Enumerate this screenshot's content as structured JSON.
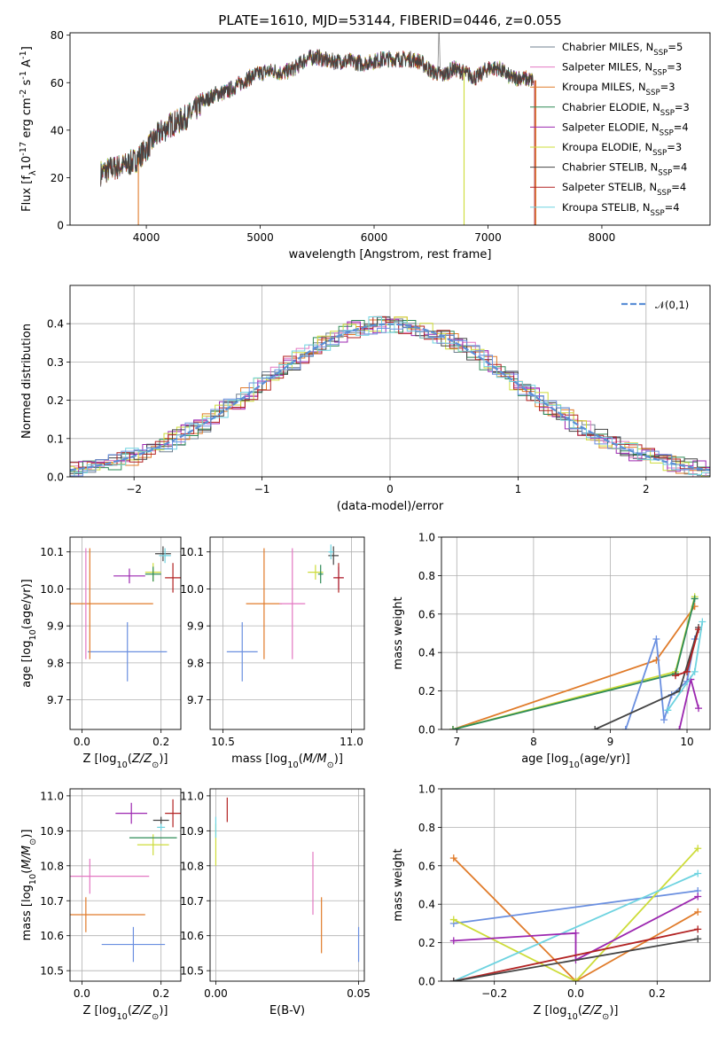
{
  "colors": {
    "Chabrier MILES": "#708090",
    "Salpeter MILES": "#e377c2",
    "Kroupa MILES": "#e07b2a",
    "Chabrier ELODIE": "#2e8b57",
    "Salpeter ELODIE": "#9c27b0",
    "Kroupa ELODIE": "#cddc39",
    "Chabrier STELIB": "#444444",
    "Salpeter STELIB": "#b22222",
    "Kroupa STELIB": "#6ed3e0",
    "blue": "#6a8fe0",
    "grid": "#b0b0b0"
  },
  "chart_data": [
    {
      "id": "spectrum",
      "type": "line",
      "title": "PLATE=1610, MJD=53144, FIBERID=0446, z=0.055",
      "xlabel": "wavelength [Angstrom, rest frame]",
      "ylabel": "Flux [f$_\\lambda$10$^{-17}$ erg cm$^{-2}$ s$^{-1}$ A$^{-1}$]",
      "xlim": [
        3330,
        8950
      ],
      "ylim": [
        0,
        81
      ],
      "xticks": [
        4000,
        5000,
        6000,
        7000,
        8000
      ],
      "yticks": [
        0,
        20,
        40,
        60,
        80
      ],
      "grid": false,
      "legend_position": "upper right",
      "legend": [
        {
          "name": "Chabrier MILES",
          "nssp": "5"
        },
        {
          "name": "Salpeter MILES",
          "nssp": "3"
        },
        {
          "name": "Kroupa MILES",
          "nssp": "3"
        },
        {
          "name": "Chabrier ELODIE",
          "nssp": "3"
        },
        {
          "name": "Salpeter ELODIE",
          "nssp": "4"
        },
        {
          "name": "Kroupa ELODIE",
          "nssp": "3"
        },
        {
          "name": "Chabrier STELIB",
          "nssp": "4"
        },
        {
          "name": "Salpeter STELIB",
          "nssp": "4"
        },
        {
          "name": "Kroupa STELIB",
          "nssp": "4"
        }
      ],
      "continuum": [
        [
          3600,
          22
        ],
        [
          3700,
          24
        ],
        [
          3800,
          25
        ],
        [
          3900,
          27
        ],
        [
          4000,
          32
        ],
        [
          4100,
          38
        ],
        [
          4200,
          42
        ],
        [
          4300,
          44
        ],
        [
          4400,
          47
        ],
        [
          4500,
          52
        ],
        [
          4600,
          55
        ],
        [
          4700,
          56
        ],
        [
          4800,
          59
        ],
        [
          4900,
          62
        ],
        [
          5000,
          64
        ],
        [
          5100,
          65
        ],
        [
          5200,
          64
        ],
        [
          5300,
          66
        ],
        [
          5400,
          70
        ],
        [
          5500,
          71
        ],
        [
          5600,
          69
        ],
        [
          5700,
          69
        ],
        [
          5800,
          69
        ],
        [
          5900,
          68
        ],
        [
          6000,
          69
        ],
        [
          6100,
          70
        ],
        [
          6200,
          70
        ],
        [
          6300,
          70
        ],
        [
          6400,
          69
        ],
        [
          6500,
          65
        ],
        [
          6600,
          63
        ],
        [
          6700,
          66
        ],
        [
          6800,
          64
        ],
        [
          6900,
          62
        ],
        [
          7000,
          66
        ],
        [
          7100,
          66
        ],
        [
          7200,
          62
        ],
        [
          7300,
          62
        ],
        [
          7400,
          61
        ]
      ],
      "spikes": [
        {
          "x": 3930,
          "series": "Kroupa MILES"
        },
        {
          "x": 6790,
          "series": "Kroupa ELODIE"
        },
        {
          "x": 7410,
          "series": "Salpeter STELIB"
        },
        {
          "x": 7420,
          "series": "Kroupa MILES"
        }
      ]
    },
    {
      "id": "residuals",
      "type": "line",
      "xlabel": "(data-model)/error",
      "ylabel": "Normed distribution",
      "xlim": [
        -2.5,
        2.5
      ],
      "ylim": [
        0,
        0.5
      ],
      "xticks": [
        -2,
        -1,
        0,
        1,
        2
      ],
      "yticks": [
        0.0,
        0.1,
        0.2,
        0.3,
        0.4
      ],
      "grid": true,
      "legend_position": "upper right",
      "legend": [
        {
          "name": "$\\mathcal{N}(0,1)$"
        }
      ],
      "histograms": "step histograms of 9 fits following the standard normal curve"
    },
    {
      "id": "age_vs_Z",
      "type": "scatter",
      "xlabel": "Z [log$_{10}$($Z/Z_\\odot$)]",
      "ylabel": "age  [log$_{10}$($age/yr$)]",
      "xlim": [
        -0.03,
        0.25
      ],
      "ylim": [
        9.62,
        10.14
      ],
      "xticks": [
        0.0,
        0.2
      ],
      "yticks": [
        9.7,
        9.8,
        9.9,
        10.0,
        10.1
      ],
      "grid": true,
      "points": [
        {
          "series": "blue",
          "x": 0.115,
          "y": 9.83,
          "xerr": 0.1,
          "yerr": 0.08
        },
        {
          "series": "Kroupa MILES",
          "x": 0.02,
          "y": 9.96,
          "xerr": 0.16,
          "yerr": 0.15
        },
        {
          "series": "Salpeter MILES",
          "x": 0.01,
          "y": 9.96,
          "xerr": 0.0,
          "yerr": 0.15
        },
        {
          "series": "Salpeter ELODIE",
          "x": 0.12,
          "y": 10.035,
          "xerr": 0.04,
          "yerr": 0.02
        },
        {
          "series": "Kroupa ELODIE",
          "x": 0.18,
          "y": 10.045,
          "xerr": 0.02,
          "yerr": 0.025
        },
        {
          "series": "Chabrier ELODIE",
          "x": 0.18,
          "y": 10.04,
          "xerr": 0.02,
          "yerr": 0.02
        },
        {
          "series": "Chabrier STELIB",
          "x": 0.205,
          "y": 10.095,
          "xerr": 0.02,
          "yerr": 0.02
        },
        {
          "series": "Kroupa STELIB",
          "x": 0.21,
          "y": 10.09,
          "xerr": 0.015,
          "yerr": 0.02
        },
        {
          "series": "Salpeter STELIB",
          "x": 0.23,
          "y": 10.03,
          "xerr": 0.02,
          "yerr": 0.04
        }
      ]
    },
    {
      "id": "age_vs_mass",
      "type": "scatter",
      "xlabel": "mass [log$_{10}$($M/M_\\odot$)]",
      "xlim": [
        10.45,
        11.05
      ],
      "ylim": [
        9.62,
        10.14
      ],
      "xticks": [
        10.5,
        11.0
      ],
      "yticks": [
        9.7,
        9.8,
        9.9,
        10.0,
        10.1
      ],
      "grid": true,
      "points": [
        {
          "series": "blue",
          "x": 10.575,
          "y": 9.83,
          "xerr": 0.06,
          "yerr": 0.08
        },
        {
          "series": "Kroupa MILES",
          "x": 10.66,
          "y": 9.96,
          "xerr": 0.07,
          "yerr": 0.15
        },
        {
          "series": "Salpeter MILES",
          "x": 10.77,
          "y": 9.96,
          "xerr": 0.05,
          "yerr": 0.15
        },
        {
          "series": "Kroupa ELODIE",
          "x": 10.86,
          "y": 10.045,
          "xerr": 0.03,
          "yerr": 0.02
        },
        {
          "series": "Chabrier ELODIE",
          "x": 10.88,
          "y": 10.04,
          "xerr": 0.01,
          "yerr": 0.025
        },
        {
          "series": "Salpeter ELODIE",
          "x": 10.95,
          "y": 10.03,
          "xerr": 0.02,
          "yerr": 0.03
        },
        {
          "series": "Chabrier STELIB",
          "x": 10.93,
          "y": 10.09,
          "xerr": 0.02,
          "yerr": 0.025
        },
        {
          "series": "Kroupa STELIB",
          "x": 10.92,
          "y": 10.1,
          "xerr": 0.01,
          "yerr": 0.02
        },
        {
          "series": "Salpeter STELIB",
          "x": 10.95,
          "y": 10.03,
          "xerr": 0.02,
          "yerr": 0.04
        }
      ]
    },
    {
      "id": "weight_vs_age",
      "type": "line",
      "xlabel": "age  [log$_{10}$($age/yr$)]",
      "ylabel": "mass weight",
      "xlim": [
        6.8,
        10.3
      ],
      "ylim": [
        0,
        1.0
      ],
      "xticks": [
        7,
        8,
        9,
        10
      ],
      "yticks": [
        0.0,
        0.2,
        0.4,
        0.6,
        0.8,
        1.0
      ],
      "grid": true,
      "series": [
        {
          "name": "Kroupa MILES",
          "points": [
            [
              6.95,
              0.0
            ],
            [
              9.6,
              0.36
            ],
            [
              10.1,
              0.64
            ]
          ]
        },
        {
          "name": "Kroupa ELODIE",
          "points": [
            [
              6.95,
              0.0
            ],
            [
              9.85,
              0.3
            ],
            [
              10.1,
              0.69
            ]
          ]
        },
        {
          "name": "Chabrier ELODIE",
          "points": [
            [
              6.95,
              0.0
            ],
            [
              9.85,
              0.29
            ],
            [
              10.1,
              0.68
            ]
          ]
        },
        {
          "name": "blue",
          "points": [
            [
              9.2,
              0.0
            ],
            [
              9.6,
              0.47
            ],
            [
              9.7,
              0.05
            ],
            [
              9.8,
              0.18
            ],
            [
              10.0,
              0.25
            ],
            [
              10.1,
              0.47
            ]
          ]
        },
        {
          "name": "Chabrier STELIB",
          "points": [
            [
              8.8,
              0.0
            ],
            [
              9.9,
              0.2
            ],
            [
              10.15,
              0.53
            ]
          ]
        },
        {
          "name": "Salpeter STELIB",
          "points": [
            [
              9.85,
              0.28
            ],
            [
              10.0,
              0.3
            ],
            [
              10.15,
              0.52
            ]
          ]
        },
        {
          "name": "Salpeter ELODIE",
          "points": [
            [
              9.9,
              0.0
            ],
            [
              10.05,
              0.26
            ],
            [
              10.15,
              0.11
            ]
          ]
        },
        {
          "name": "Kroupa STELIB",
          "points": [
            [
              9.75,
              0.1
            ],
            [
              10.1,
              0.3
            ],
            [
              10.2,
              0.56
            ]
          ]
        }
      ]
    },
    {
      "id": "mass_vs_Z",
      "type": "scatter",
      "xlabel": "Z [log$_{10}$($Z/Z_\\odot$)]",
      "ylabel": "mass [log$_{10}$($M/M_\\odot$)]",
      "xlim": [
        -0.03,
        0.25
      ],
      "ylim": [
        10.47,
        11.02
      ],
      "xticks": [
        0.0,
        0.2
      ],
      "yticks": [
        10.5,
        10.6,
        10.7,
        10.8,
        10.9,
        11.0
      ],
      "grid": true,
      "points": [
        {
          "series": "blue",
          "x": 0.13,
          "y": 10.575,
          "xerr": 0.08,
          "yerr": 0.05
        },
        {
          "series": "Kroupa MILES",
          "x": 0.01,
          "y": 10.66,
          "xerr": 0.15,
          "yerr": 0.05
        },
        {
          "series": "Salpeter MILES",
          "x": 0.02,
          "y": 10.77,
          "xerr": 0.15,
          "yerr": 0.05
        },
        {
          "series": "Kroupa ELODIE",
          "x": 0.18,
          "y": 10.86,
          "xerr": 0.04,
          "yerr": 0.03
        },
        {
          "series": "Chabrier ELODIE",
          "x": 0.18,
          "y": 10.88,
          "xerr": 0.06,
          "yerr": 0.0
        },
        {
          "series": "Salpeter ELODIE",
          "x": 0.125,
          "y": 10.95,
          "xerr": 0.04,
          "yerr": 0.03
        },
        {
          "series": "Chabrier STELIB",
          "x": 0.2,
          "y": 10.93,
          "xerr": 0.02,
          "yerr": 0.01
        },
        {
          "series": "Kroupa STELIB",
          "x": 0.2,
          "y": 10.91,
          "xerr": 0.01,
          "yerr": 0.01
        },
        {
          "series": "Salpeter STELIB",
          "x": 0.23,
          "y": 10.95,
          "xerr": 0.02,
          "yerr": 0.04
        }
      ]
    },
    {
      "id": "mass_vs_EBV",
      "type": "scatter",
      "xlabel": "E(B-V)",
      "xlim": [
        -0.002,
        0.052
      ],
      "ylim": [
        10.47,
        11.02
      ],
      "xticks": [
        0.0,
        0.05
      ],
      "yticks": [
        10.5,
        10.6,
        10.7,
        10.8,
        10.9,
        11.0
      ],
      "grid": true,
      "points": [
        {
          "series": "blue",
          "x": 0.05,
          "y": 10.575,
          "xerr": 0.0,
          "yerr": 0.05
        },
        {
          "series": "Kroupa MILES",
          "x": 0.037,
          "y": 10.63,
          "xerr": 0.0,
          "yerr": 0.08
        },
        {
          "series": "Salpeter MILES",
          "x": 0.034,
          "y": 10.75,
          "xerr": 0.0,
          "yerr": 0.09
        },
        {
          "series": "Kroupa ELODIE",
          "x": 0.0,
          "y": 10.86,
          "xerr": 0.0,
          "yerr": 0.06
        },
        {
          "series": "Salpeter STELIB",
          "x": 0.004,
          "y": 10.96,
          "xerr": 0.0,
          "yerr": 0.035
        },
        {
          "series": "Kroupa STELIB",
          "x": 0.0,
          "y": 10.91,
          "xerr": 0.0,
          "yerr": 0.03
        }
      ]
    },
    {
      "id": "weight_vs_Z",
      "type": "line",
      "xlabel": "Z [log$_{10}$($Z/Z_\\odot$)]",
      "ylabel": "mass weight",
      "xlim": [
        -0.33,
        0.33
      ],
      "ylim": [
        0,
        1.0
      ],
      "xticks": [
        -0.2,
        0.0,
        0.2
      ],
      "yticks": [
        0.0,
        0.2,
        0.4,
        0.6,
        0.8,
        1.0
      ],
      "grid": true,
      "series": [
        {
          "name": "Kroupa MILES",
          "points": [
            [
              -0.3,
              0.64
            ],
            [
              0.0,
              0.0
            ],
            [
              0.3,
              0.36
            ]
          ]
        },
        {
          "name": "blue",
          "points": [
            [
              -0.3,
              0.3
            ],
            [
              0.3,
              0.47
            ]
          ]
        },
        {
          "name": "Kroupa ELODIE",
          "points": [
            [
              -0.3,
              0.32
            ],
            [
              0.0,
              0.0
            ],
            [
              0.3,
              0.69
            ]
          ]
        },
        {
          "name": "Kroupa STELIB",
          "points": [
            [
              -0.3,
              0.0
            ],
            [
              0.3,
              0.56
            ]
          ]
        },
        {
          "name": "Salpeter ELODIE",
          "points": [
            [
              -0.3,
              0.21
            ],
            [
              0.0,
              0.25
            ],
            [
              0.0,
              0.11
            ],
            [
              0.3,
              0.44
            ]
          ]
        },
        {
          "name": "Salpeter STELIB",
          "points": [
            [
              -0.3,
              0.0
            ],
            [
              0.3,
              0.27
            ]
          ]
        },
        {
          "name": "Chabrier STELIB",
          "points": [
            [
              -0.3,
              0.0
            ],
            [
              0.3,
              0.22
            ]
          ]
        }
      ]
    }
  ]
}
